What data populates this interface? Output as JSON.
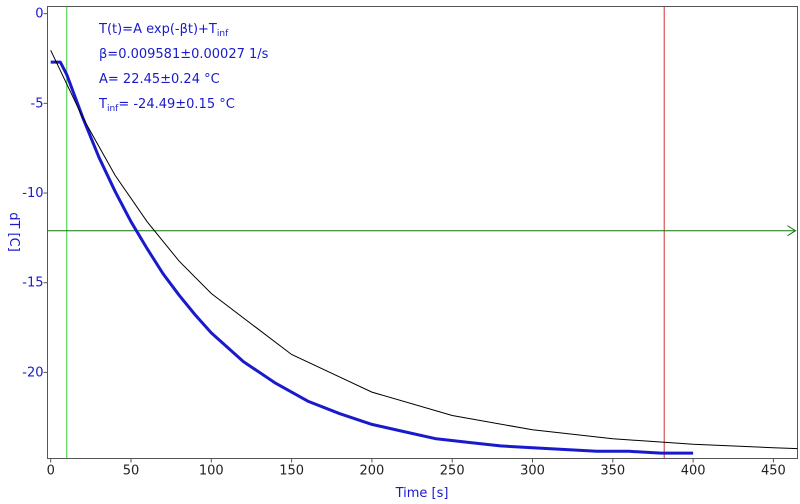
{
  "chart_data": {
    "type": "line",
    "xlabel": "Time [s]",
    "ylabel": "dT [C]",
    "xlim": [
      -2,
      465
    ],
    "ylim": [
      -24.8,
      0.4
    ],
    "x_ticks": [
      0,
      50,
      100,
      150,
      200,
      250,
      300,
      350,
      400,
      450
    ],
    "y_ticks": [
      0,
      -5,
      -10,
      -15,
      -20
    ],
    "grid": false,
    "colors": {
      "data": "#1a1acc",
      "fit": "#000000",
      "axis_text": "#1a1acc",
      "left_cursor": "#33cc33",
      "right_cursor": "#cc3333",
      "h_cursor": "#117711"
    },
    "fit_model": {
      "A": 22.45,
      "beta": 0.009581,
      "T_inf": -24.49
    },
    "cursors": {
      "vertical_left_x": 10,
      "vertical_right_x": 382,
      "horizontal_y": -12.1
    },
    "series": [
      {
        "style": "measured",
        "x": [
          0,
          6,
          10,
          20,
          30,
          40,
          50,
          60,
          70,
          80,
          90,
          100,
          120,
          140,
          160,
          180,
          200,
          220,
          240,
          260,
          280,
          300,
          320,
          340,
          360,
          380,
          400
        ],
        "y": [
          -2.7,
          -2.7,
          -3.4,
          -5.8,
          -8.0,
          -9.9,
          -11.6,
          -13.1,
          -14.5,
          -15.7,
          -16.8,
          -17.8,
          -19.4,
          -20.6,
          -21.6,
          -22.3,
          -22.9,
          -23.3,
          -23.7,
          -23.9,
          -24.1,
          -24.2,
          -24.3,
          -24.4,
          -24.4,
          -24.5,
          -24.5
        ]
      },
      {
        "style": "fit",
        "x": [
          0,
          20,
          40,
          60,
          80,
          100,
          150,
          200,
          250,
          300,
          350,
          400,
          450,
          465
        ],
        "y": [
          -2.04,
          -5.8,
          -9.0,
          -11.6,
          -13.8,
          -15.6,
          -19.0,
          -21.1,
          -22.4,
          -23.2,
          -23.7,
          -24.0,
          -24.2,
          -24.25
        ]
      }
    ],
    "annotations": {
      "formula_main": "T(t)=A exp(-βt)+T",
      "formula_sub": "inf",
      "beta": "β=0.009581±0.00027 1/s",
      "A": "A= 22.45±0.24 °C",
      "tinf_main": "T",
      "tinf_sub": "inf",
      "tinf_value": "= -24.49±0.15 °C"
    }
  }
}
